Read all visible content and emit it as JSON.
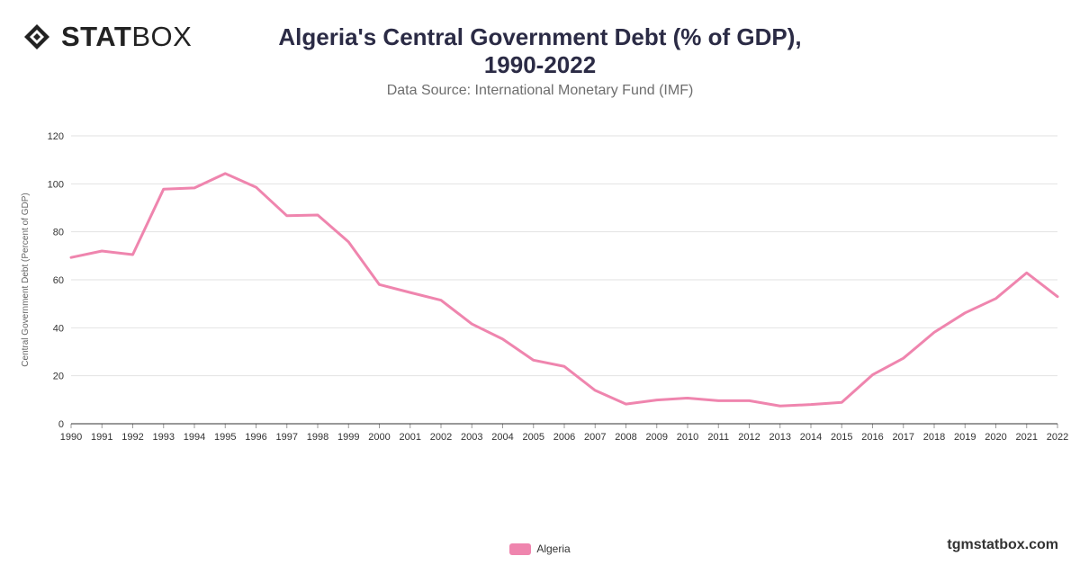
{
  "brand": {
    "bold": "STAT",
    "light": "BOX"
  },
  "title_line1": "Algeria's Central Government Debt (% of GDP),",
  "title_line2": "1990-2022",
  "subtitle": "Data Source: International Monetary Fund (IMF)",
  "website": "tgmstatbox.com",
  "colors": {
    "line": "#ef85ae",
    "grid": "#e2e2e2",
    "axis": "#333333",
    "text": "#333333"
  },
  "chart_data": {
    "type": "line",
    "title": "Algeria's Central Government Debt (% of GDP), 1990-2022",
    "subtitle": "Data Source: International Monetary Fund (IMF)",
    "xlabel": "",
    "ylabel": "Central Government Debt (Percent of GDP)",
    "ylim": [
      0,
      120
    ],
    "yticks": [
      0,
      20,
      40,
      60,
      80,
      100,
      120
    ],
    "grid": true,
    "legend_position": "bottom",
    "categories": [
      "1990",
      "1991",
      "1992",
      "1993",
      "1994",
      "1995",
      "1996",
      "1997",
      "1998",
      "1999",
      "2000",
      "2001",
      "2002",
      "2003",
      "2004",
      "2005",
      "2006",
      "2007",
      "2008",
      "2009",
      "2010",
      "2011",
      "2012",
      "2013",
      "2014",
      "2015",
      "2016",
      "2017",
      "2018",
      "2019",
      "2020",
      "2021",
      "2022"
    ],
    "series": [
      {
        "name": "Algeria",
        "color": "#ef85ae",
        "values": [
          69.3,
          72.0,
          70.5,
          97.8,
          98.3,
          104.3,
          98.6,
          86.7,
          87.0,
          75.8,
          58.0,
          54.7,
          51.5,
          41.6,
          35.3,
          26.5,
          23.9,
          13.9,
          8.2,
          9.9,
          10.7,
          9.6,
          9.6,
          7.4,
          8.0,
          8.9,
          20.4,
          27.3,
          38.1,
          46.2,
          52.2,
          62.9,
          53.0
        ]
      }
    ]
  }
}
